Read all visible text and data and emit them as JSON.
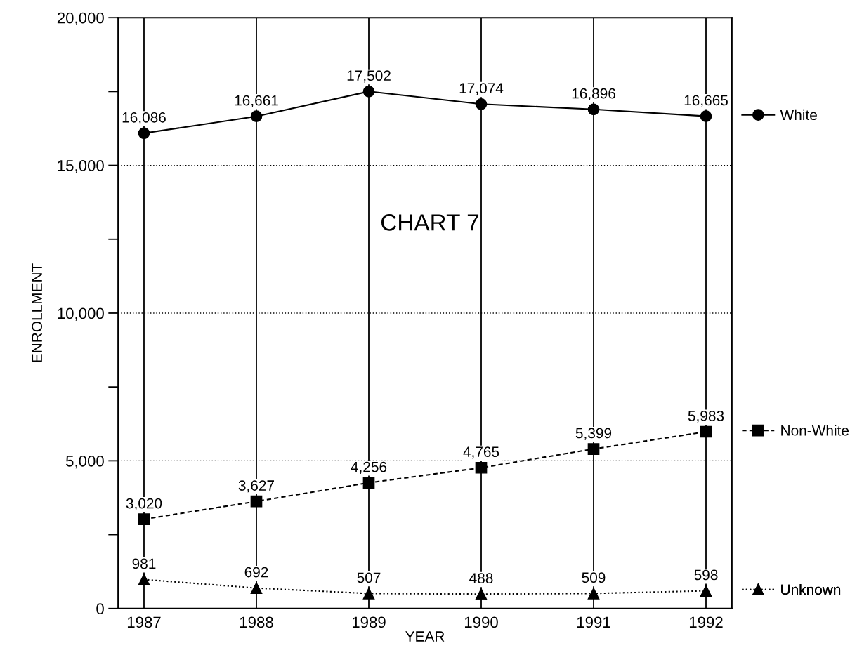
{
  "chart_data": {
    "type": "line",
    "title": "CHART 7",
    "xlabel": "YEAR",
    "ylabel": "ENROLLMENT",
    "categories": [
      "1987",
      "1988",
      "1989",
      "1990",
      "1991",
      "1992"
    ],
    "ylim": [
      0,
      20000
    ],
    "yticks": [
      0,
      {
        "value": 2500,
        "label": null
      },
      {
        "value": 5000,
        "label": "5,000"
      },
      {
        "value": 7500,
        "label": null
      },
      {
        "value": 10000,
        "label": "10,000"
      },
      {
        "value": 12500,
        "label": null
      },
      {
        "value": 15000,
        "label": "15,000"
      },
      {
        "value": 17500,
        "label": null
      },
      {
        "value": 20000,
        "label": "20,000"
      }
    ],
    "grid": true,
    "legend": "right",
    "series": [
      {
        "name": "White",
        "color": "#000000",
        "marker": "circle",
        "line_style": "solid",
        "values": [
          16086,
          16661,
          17502,
          17074,
          16896,
          16665
        ],
        "value_labels": [
          "16,086",
          "16,661",
          "17,502",
          "17,074",
          "16,896",
          "16,665"
        ]
      },
      {
        "name": "Non-White",
        "color": "#000000",
        "marker": "square",
        "line_style": "dashed",
        "values": [
          3020,
          3627,
          4256,
          4765,
          5399,
          5983
        ],
        "value_labels": [
          "3,020",
          "3,627",
          "4,256",
          "4,765",
          "5,399",
          "5,983"
        ]
      },
      {
        "name": "Unknown",
        "color": "#000000",
        "marker": "triangle",
        "line_style": "dotted",
        "values": [
          981,
          692,
          507,
          488,
          509,
          598
        ],
        "value_labels": [
          "981",
          "692",
          "507",
          "488",
          "509",
          "598"
        ]
      }
    ]
  }
}
